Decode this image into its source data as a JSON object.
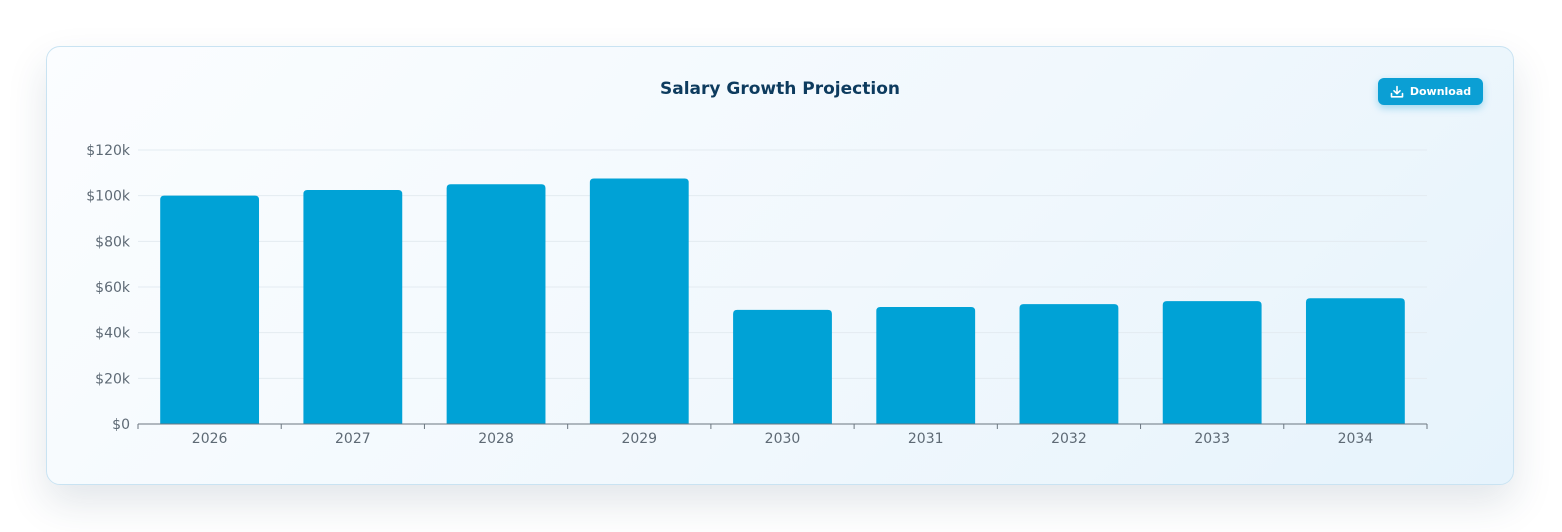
{
  "chart_data": {
    "type": "bar",
    "title": "Salary Growth Projection",
    "categories": [
      "2026",
      "2027",
      "2028",
      "2029",
      "2030",
      "2031",
      "2032",
      "2033",
      "2034"
    ],
    "values": [
      100000,
      102500,
      105000,
      107500,
      50000,
      51250,
      52500,
      53800,
      55100
    ],
    "ylim": [
      0,
      120000
    ],
    "yticks": [
      0,
      20000,
      40000,
      60000,
      80000,
      100000,
      120000
    ],
    "ytick_labels": [
      "$0",
      "$20k",
      "$40k",
      "$60k",
      "$80k",
      "$100k",
      "$120k"
    ],
    "xlabel": "",
    "ylabel": "",
    "grid": true,
    "bar_color": "#00a2d6"
  },
  "toolbar": {
    "download_label": "Download",
    "download_icon": "download-icon"
  },
  "colors": {
    "title": "#0d3b5e",
    "button": "#0b9fd4",
    "grid": "#e3ebf1",
    "axis": "#6b7680"
  }
}
